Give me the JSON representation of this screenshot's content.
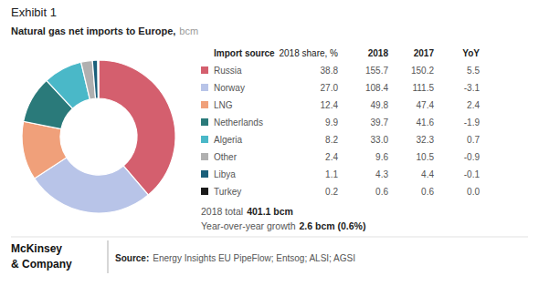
{
  "chart_data": {
    "type": "donut",
    "title": "Exhibit 1",
    "subtitle": [
      "Natural gas net imports to Europe,",
      "bcm"
    ],
    "categories": [
      "Russia",
      "Norway",
      "LNG",
      "Netherlands",
      "Algeria",
      "Other",
      "Libya",
      "Turkey"
    ],
    "values": [
      38.8,
      27.0,
      12.4,
      9.9,
      8.2,
      2.4,
      1.1,
      0.2
    ],
    "colors": [
      "#d45f6e",
      "#b8c4e8",
      "#f0a07a",
      "#2a7a7a",
      "#4ab8c8",
      "#b0b0b0",
      "#1a5f7a",
      "#1a1a1a"
    ],
    "table": {
      "columns": [
        "Import source",
        "2018 share, %",
        "2018",
        "2017",
        "YoY"
      ],
      "values": [
        [
          38.8,
          155.7,
          150.2,
          5.5
        ],
        [
          27.0,
          108.4,
          111.5,
          -3.1
        ],
        [
          12.4,
          49.8,
          47.4,
          2.4
        ],
        [
          9.9,
          39.7,
          41.6,
          -1.9
        ],
        [
          8.2,
          33.0,
          32.3,
          0.7
        ],
        [
          2.4,
          9.6,
          10.5,
          -0.9
        ],
        [
          1.1,
          4.3,
          4.4,
          -0.1
        ],
        [
          0.2,
          0.6,
          0.6,
          0.0
        ]
      ],
      "value_labels": [
        [
          "38.8",
          "155.7",
          "150.2",
          "5.5"
        ],
        [
          "27.0",
          "108.4",
          "111.5",
          "-3.1"
        ],
        [
          "12.4",
          "49.8",
          "47.4",
          "2.4"
        ],
        [
          "9.9",
          "39.7",
          "41.6",
          "-1.9"
        ],
        [
          "8.2",
          "33.0",
          "32.3",
          "0.7"
        ],
        [
          "2.4",
          "9.6",
          "10.5",
          "-0.9"
        ],
        [
          "1.1",
          "4.3",
          "4.4",
          "-0.1"
        ],
        [
          "0.2",
          "0.6",
          "0.6",
          "0.0"
        ]
      ]
    },
    "notes": [
      [
        "2018 total",
        "401.1 bcm"
      ],
      [
        "Year-over-year growth",
        "2.6 bcm (0.6%)"
      ]
    ],
    "source": [
      "Source:",
      "Energy Insights EU PipeFlow; Entsog; ALSI; AGSI"
    ],
    "brand": [
      "McKinsey",
      "& Company"
    ]
  }
}
